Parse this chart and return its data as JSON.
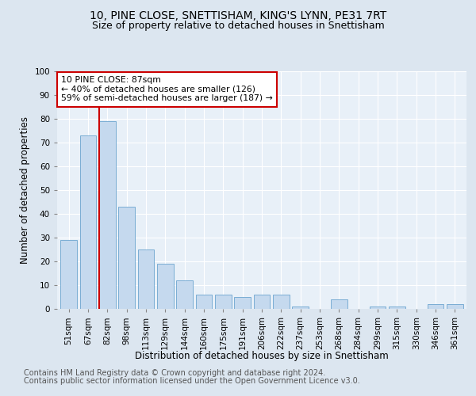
{
  "title1": "10, PINE CLOSE, SNETTISHAM, KING'S LYNN, PE31 7RT",
  "title2": "Size of property relative to detached houses in Snettisham",
  "xlabel": "Distribution of detached houses by size in Snettisham",
  "ylabel": "Number of detached properties",
  "footer1": "Contains HM Land Registry data © Crown copyright and database right 2024.",
  "footer2": "Contains public sector information licensed under the Open Government Licence v3.0.",
  "categories": [
    "51sqm",
    "67sqm",
    "82sqm",
    "98sqm",
    "113sqm",
    "129sqm",
    "144sqm",
    "160sqm",
    "175sqm",
    "191sqm",
    "206sqm",
    "222sqm",
    "237sqm",
    "253sqm",
    "268sqm",
    "284sqm",
    "299sqm",
    "315sqm",
    "330sqm",
    "346sqm",
    "361sqm"
  ],
  "values": [
    29,
    73,
    79,
    43,
    25,
    19,
    12,
    6,
    6,
    5,
    6,
    6,
    1,
    0,
    4,
    0,
    1,
    1,
    0,
    2,
    2
  ],
  "bar_color": "#c5d9ee",
  "bar_edge_color": "#7aadd4",
  "vline_color": "#cc0000",
  "annotation_text": "10 PINE CLOSE: 87sqm\n← 40% of detached houses are smaller (126)\n59% of semi-detached houses are larger (187) →",
  "annotation_box_color": "#ffffff",
  "annotation_box_edge": "#cc0000",
  "ylim": [
    0,
    100
  ],
  "yticks": [
    0,
    10,
    20,
    30,
    40,
    50,
    60,
    70,
    80,
    90,
    100
  ],
  "bg_color": "#dce6f0",
  "plot_bg_color": "#e8f0f8",
  "title_fontsize": 10,
  "subtitle_fontsize": 9,
  "axis_label_fontsize": 8.5,
  "tick_fontsize": 7.5,
  "footer_fontsize": 7
}
